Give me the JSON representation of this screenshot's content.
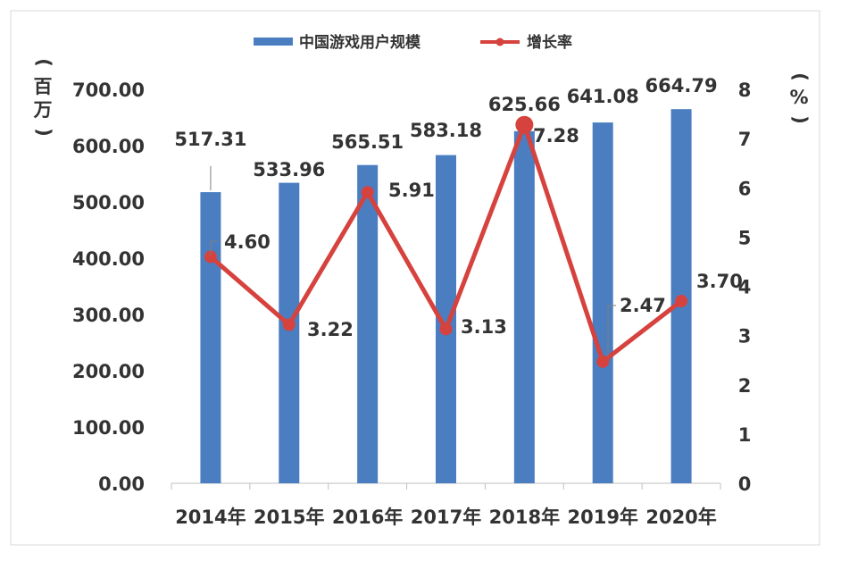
{
  "chart_data": {
    "type": "bar+line",
    "categories": [
      "2014年",
      "2015年",
      "2016年",
      "2017年",
      "2018年",
      "2019年",
      "2020年"
    ],
    "series": [
      {
        "name": "中国游戏用户规模",
        "type": "bar",
        "axis": "left",
        "color": "#4A7EC1",
        "values": [
          517.31,
          533.96,
          565.51,
          583.18,
          625.66,
          641.08,
          664.79
        ],
        "labels": [
          "517.31",
          "533.96",
          "565.51",
          "583.18",
          "625.66",
          "641.08",
          "664.79"
        ]
      },
      {
        "name": "增长率",
        "type": "line",
        "axis": "right",
        "color": "#D6423D",
        "values": [
          4.6,
          3.22,
          5.91,
          3.13,
          7.28,
          2.47,
          3.7
        ],
        "labels": [
          "4.60",
          "3.22",
          "5.91",
          "3.13",
          "7.28",
          "2.47",
          "3.70"
        ]
      }
    ],
    "y_left": {
      "label_chars": [
        "(",
        "百",
        "万",
        ")"
      ],
      "ylim": [
        0,
        700
      ],
      "ticks": [
        "0.00",
        "100.00",
        "200.00",
        "300.00",
        "400.00",
        "500.00",
        "600.00",
        "700.00"
      ]
    },
    "y_right": {
      "label_chars": [
        "(",
        "%",
        ")"
      ],
      "ylim": [
        0,
        8
      ],
      "ticks": [
        "0",
        "1",
        "2",
        "3",
        "4",
        "5",
        "6",
        "7",
        "8"
      ]
    },
    "legend_position": "top-center",
    "grid": false
  }
}
